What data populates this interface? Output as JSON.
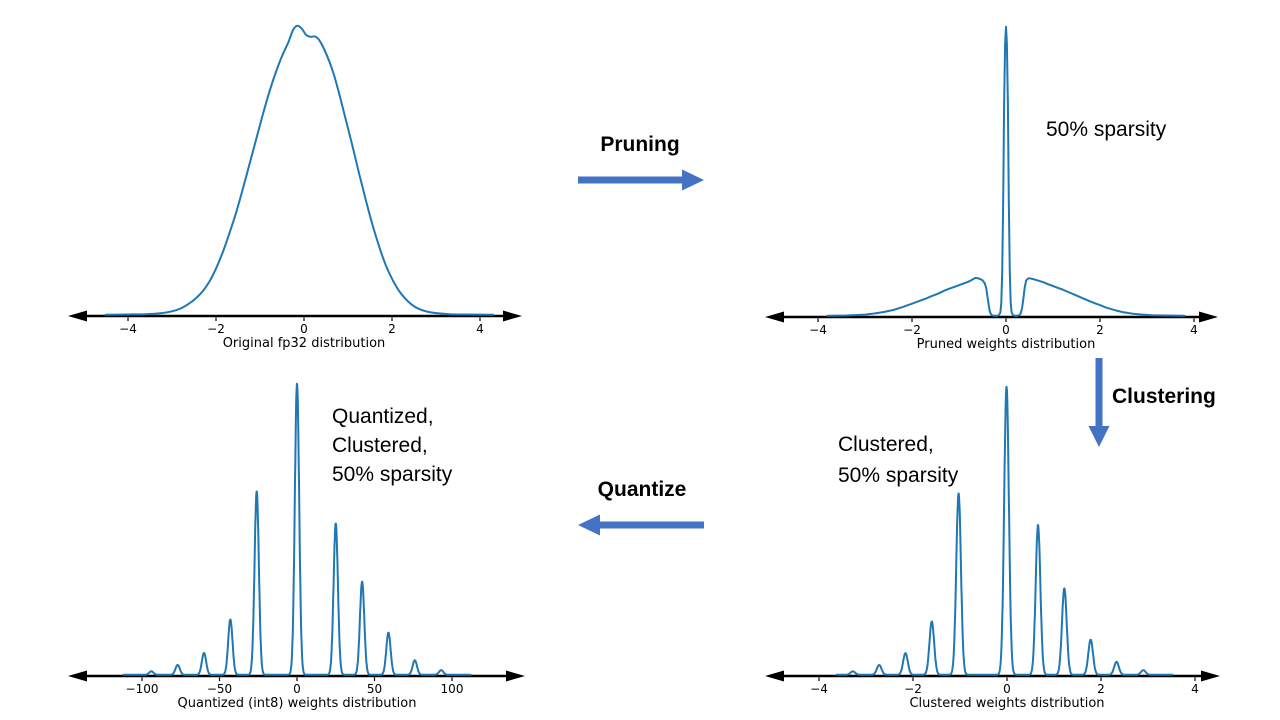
{
  "colors": {
    "curve": "#1f77b4",
    "flow_arrow": "#4472C4",
    "axis": "#000000",
    "text": "#000000",
    "background": "#ffffff"
  },
  "flow": {
    "pruning_label": "Pruning",
    "clustering_label": "Clustering",
    "quantize_label": "Quantize"
  },
  "chart_data": [
    {
      "id": "original-fp32",
      "type": "line",
      "xlabel": "Original fp32 distribution",
      "xticks": [
        -4,
        -2,
        0,
        2,
        4
      ],
      "xtick_labels": [
        "−4",
        "−2",
        "0",
        "2",
        "4"
      ],
      "xlim": [
        -5.4,
        4.9
      ],
      "ylim": [
        0,
        1.05
      ],
      "grid": false,
      "smooth": true,
      "annotation": null,
      "points": [
        [
          -4.5,
          0.0
        ],
        [
          -4.0,
          0.001
        ],
        [
          -3.6,
          0.002
        ],
        [
          -3.3,
          0.005
        ],
        [
          -3.0,
          0.012
        ],
        [
          -2.8,
          0.022
        ],
        [
          -2.6,
          0.04
        ],
        [
          -2.45,
          0.058
        ],
        [
          -2.3,
          0.082
        ],
        [
          -2.15,
          0.115
        ],
        [
          -2.0,
          0.16
        ],
        [
          -1.85,
          0.215
        ],
        [
          -1.7,
          0.28
        ],
        [
          -1.55,
          0.35
        ],
        [
          -1.4,
          0.43
        ],
        [
          -1.25,
          0.515
        ],
        [
          -1.1,
          0.6
        ],
        [
          -0.95,
          0.685
        ],
        [
          -0.8,
          0.765
        ],
        [
          -0.65,
          0.835
        ],
        [
          -0.5,
          0.895
        ],
        [
          -0.35,
          0.945
        ],
        [
          -0.25,
          0.985
        ],
        [
          -0.15,
          1.0
        ],
        [
          -0.05,
          0.99
        ],
        [
          0.05,
          0.968
        ],
        [
          0.15,
          0.962
        ],
        [
          0.25,
          0.963
        ],
        [
          0.35,
          0.95
        ],
        [
          0.5,
          0.905
        ],
        [
          0.65,
          0.845
        ],
        [
          0.8,
          0.765
        ],
        [
          0.95,
          0.675
        ],
        [
          1.1,
          0.585
        ],
        [
          1.25,
          0.49
        ],
        [
          1.4,
          0.4
        ],
        [
          1.55,
          0.315
        ],
        [
          1.7,
          0.24
        ],
        [
          1.85,
          0.175
        ],
        [
          2.0,
          0.125
        ],
        [
          2.15,
          0.085
        ],
        [
          2.3,
          0.056
        ],
        [
          2.45,
          0.035
        ],
        [
          2.6,
          0.021
        ],
        [
          2.8,
          0.011
        ],
        [
          3.0,
          0.006
        ],
        [
          3.3,
          0.002
        ],
        [
          3.7,
          0.001
        ],
        [
          4.3,
          0.0
        ]
      ]
    },
    {
      "id": "pruned",
      "type": "line",
      "xlabel": "Pruned weights distribution",
      "annotation": "50% sparsity",
      "xticks": [
        -4,
        -2,
        0,
        2,
        4
      ],
      "xtick_labels": [
        "−4",
        "−2",
        "0",
        "2",
        "4"
      ],
      "xlim": [
        -5.1,
        4.5
      ],
      "ylim": [
        0,
        1.05
      ],
      "grid": false,
      "smooth": false,
      "points": [
        [
          -3.8,
          0.0
        ],
        [
          -3.4,
          0.001
        ],
        [
          -3.0,
          0.004
        ],
        [
          -2.8,
          0.008
        ],
        [
          -2.6,
          0.013
        ],
        [
          -2.4,
          0.02
        ],
        [
          -2.2,
          0.03
        ],
        [
          -2.0,
          0.042
        ],
        [
          -1.9,
          0.048
        ],
        [
          -1.8,
          0.054
        ],
        [
          -1.7,
          0.06
        ],
        [
          -1.6,
          0.067
        ],
        [
          -1.5,
          0.073
        ],
        [
          -1.4,
          0.08
        ],
        [
          -1.3,
          0.088
        ],
        [
          -1.2,
          0.094
        ],
        [
          -1.1,
          0.1
        ],
        [
          -1.0,
          0.106
        ],
        [
          -0.9,
          0.112
        ],
        [
          -0.8,
          0.118
        ],
        [
          -0.75,
          0.122
        ],
        [
          -0.7,
          0.127
        ],
        [
          -0.65,
          0.131
        ],
        [
          -0.6,
          0.13
        ],
        [
          -0.55,
          0.127
        ],
        [
          -0.5,
          0.123
        ],
        [
          -0.45,
          0.112
        ],
        [
          -0.42,
          0.095
        ],
        [
          -0.4,
          0.072
        ],
        [
          -0.37,
          0.04
        ],
        [
          -0.35,
          0.018
        ],
        [
          -0.32,
          0.005
        ],
        [
          -0.29,
          0.001
        ],
        [
          -0.24,
          0.0
        ],
        [
          -0.19,
          0.0
        ],
        [
          -0.15,
          0.002
        ],
        [
          -0.12,
          0.012
        ],
        [
          -0.1,
          0.045
        ],
        [
          -0.08,
          0.15
        ],
        [
          -0.06,
          0.4
        ],
        [
          -0.04,
          0.73
        ],
        [
          -0.02,
          0.94
        ],
        [
          0.0,
          1.0
        ],
        [
          0.02,
          0.94
        ],
        [
          0.04,
          0.73
        ],
        [
          0.06,
          0.4
        ],
        [
          0.08,
          0.15
        ],
        [
          0.1,
          0.045
        ],
        [
          0.12,
          0.012
        ],
        [
          0.15,
          0.002
        ],
        [
          0.19,
          0.0
        ],
        [
          0.24,
          0.0
        ],
        [
          0.28,
          0.002
        ],
        [
          0.31,
          0.007
        ],
        [
          0.34,
          0.025
        ],
        [
          0.37,
          0.06
        ],
        [
          0.4,
          0.1
        ],
        [
          0.43,
          0.122
        ],
        [
          0.46,
          0.128
        ],
        [
          0.5,
          0.13
        ],
        [
          0.55,
          0.128
        ],
        [
          0.6,
          0.126
        ],
        [
          0.7,
          0.121
        ],
        [
          0.8,
          0.116
        ],
        [
          0.9,
          0.109
        ],
        [
          1.0,
          0.103
        ],
        [
          1.1,
          0.097
        ],
        [
          1.2,
          0.091
        ],
        [
          1.3,
          0.084
        ],
        [
          1.4,
          0.077
        ],
        [
          1.5,
          0.07
        ],
        [
          1.6,
          0.063
        ],
        [
          1.7,
          0.056
        ],
        [
          1.8,
          0.049
        ],
        [
          1.9,
          0.043
        ],
        [
          2.0,
          0.037
        ],
        [
          2.1,
          0.03
        ],
        [
          2.2,
          0.025
        ],
        [
          2.35,
          0.018
        ],
        [
          2.5,
          0.012
        ],
        [
          2.7,
          0.007
        ],
        [
          2.9,
          0.004
        ],
        [
          3.1,
          0.002
        ],
        [
          3.4,
          0.001
        ],
        [
          3.8,
          0.0
        ]
      ]
    },
    {
      "id": "quantized-int8",
      "type": "line",
      "xlabel": "Quantized (int8) weights distribution",
      "annotation": "Quantized,\nClustered,\n50% sparsity",
      "xticks": [
        -100,
        -50,
        0,
        50,
        100
      ],
      "xtick_labels": [
        "−100",
        "−50",
        "0",
        "50",
        "100"
      ],
      "xlim": [
        -148,
        147
      ],
      "ylim": [
        0,
        1.05
      ],
      "grid": false,
      "smooth": false,
      "spike_sigma": 1.4,
      "spikes": [
        [
          -94,
          0.012
        ],
        [
          -77,
          0.034
        ],
        [
          -60,
          0.075
        ],
        [
          -43,
          0.19
        ],
        [
          -26,
          0.63
        ],
        [
          0,
          1.0
        ],
        [
          25,
          0.52
        ],
        [
          42,
          0.32
        ],
        [
          59,
          0.145
        ],
        [
          76,
          0.05
        ],
        [
          93,
          0.016
        ]
      ]
    },
    {
      "id": "clustered",
      "type": "line",
      "xlabel": "Clustered weights distribution",
      "annotation": "Clustered,\n50% sparsity",
      "xticks": [
        -4,
        -2,
        0,
        2,
        4
      ],
      "xtick_labels": [
        "−4",
        "−2",
        "0",
        "2",
        "4"
      ],
      "xlim": [
        -5.1,
        4.5
      ],
      "ylim": [
        0,
        1.05
      ],
      "grid": false,
      "smooth": false,
      "spike_sigma": 0.05,
      "spikes": [
        [
          -3.28,
          0.012
        ],
        [
          -2.72,
          0.034
        ],
        [
          -2.16,
          0.075
        ],
        [
          -1.6,
          0.185
        ],
        [
          -1.03,
          0.63
        ],
        [
          -0.01,
          1.0
        ],
        [
          0.66,
          0.52
        ],
        [
          1.22,
          0.3
        ],
        [
          1.78,
          0.122
        ],
        [
          2.33,
          0.045
        ],
        [
          2.9,
          0.016
        ]
      ]
    }
  ]
}
